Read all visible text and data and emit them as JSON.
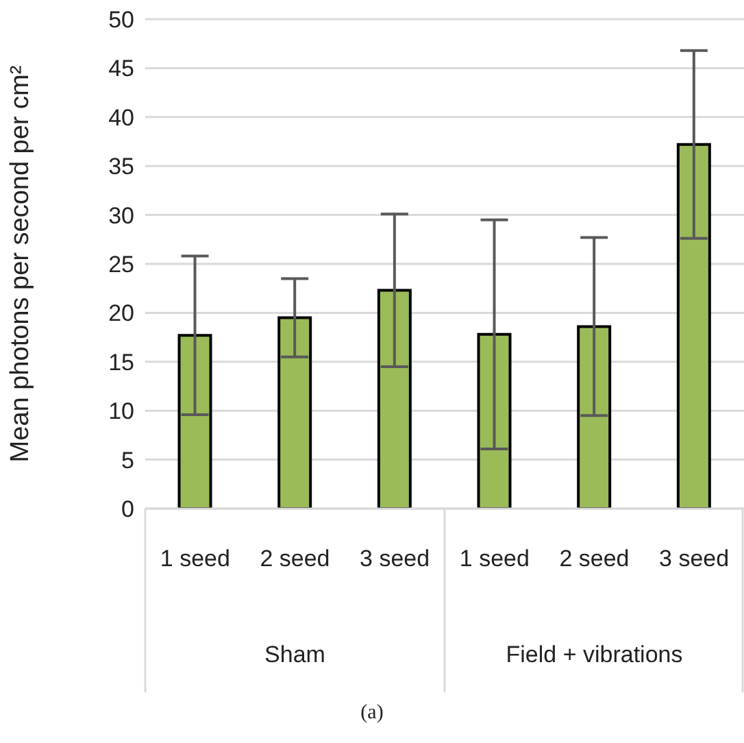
{
  "chart_data": {
    "type": "bar",
    "ylabel": "Mean photons per second per cm²",
    "categories": [
      "1 seed",
      "2 seed",
      "3 seed",
      "1 seed",
      "2 seed",
      "3 seed"
    ],
    "values": [
      17.7,
      19.5,
      22.3,
      17.8,
      18.6,
      37.2
    ],
    "errors": [
      8.1,
      4.0,
      7.8,
      11.7,
      9.1,
      9.6
    ],
    "color": "#9bbb59",
    "ylim": [
      0,
      50
    ],
    "yticks": [
      0,
      5,
      10,
      15,
      20,
      25,
      30,
      35,
      40,
      45,
      50
    ],
    "grid": "y",
    "annotations": [
      "Sham",
      "Field + vibrations",
      "(a)"
    ]
  }
}
